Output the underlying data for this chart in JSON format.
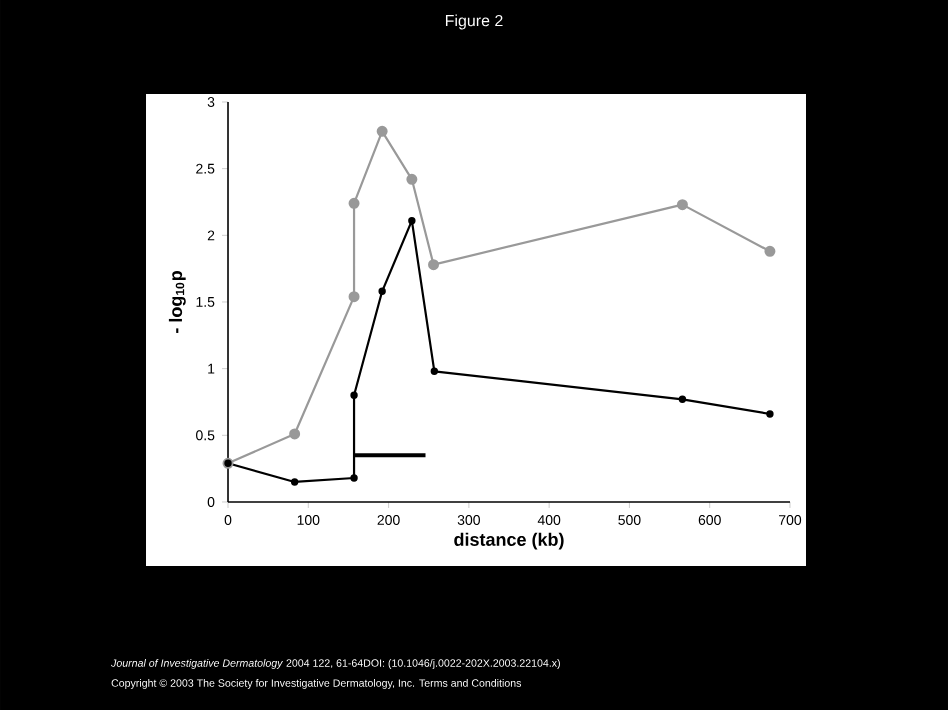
{
  "chart_data": {
    "type": "line",
    "title": "Figure 2",
    "xlabel": "distance (kb)",
    "ylabel": "- log$_{10}$p",
    "xlim": [
      0,
      700
    ],
    "xticks": [
      0,
      100,
      200,
      300,
      400,
      500,
      600,
      700
    ],
    "ylim": [
      0,
      3
    ],
    "yticks": [
      0,
      0.5,
      1,
      1.5,
      2,
      2.5,
      3
    ],
    "marker": "circle",
    "series": [
      {
        "color": "#999999",
        "x": [
          0,
          83,
          157,
          157,
          192,
          229,
          256,
          566,
          675
        ],
        "values": [
          0.29,
          0.51,
          1.54,
          2.24,
          2.78,
          2.42,
          1.78,
          2.23,
          1.88
        ]
      },
      {
        "color": "#000000",
        "x": [
          0,
          83,
          157,
          157,
          192,
          229,
          257,
          566,
          675
        ],
        "values": [
          0.29,
          0.15,
          0.18,
          0.8,
          1.58,
          2.11,
          0.98,
          0.77,
          0.66
        ]
      },
      {
        "color": "#000000",
        "marker": "none",
        "x": [
          157,
          246
        ],
        "values": [
          0.35,
          0.35
        ]
      }
    ],
    "annotations": [
      "*Journal of Investigative Dermatology* 2004 122, 61-64DOI: (10.1046/j.0022-202X.2003.22104.x)",
      "Copyright © 2003 The Society for Investigative Dermatology, Inc. Terms and Conditions"
    ]
  }
}
